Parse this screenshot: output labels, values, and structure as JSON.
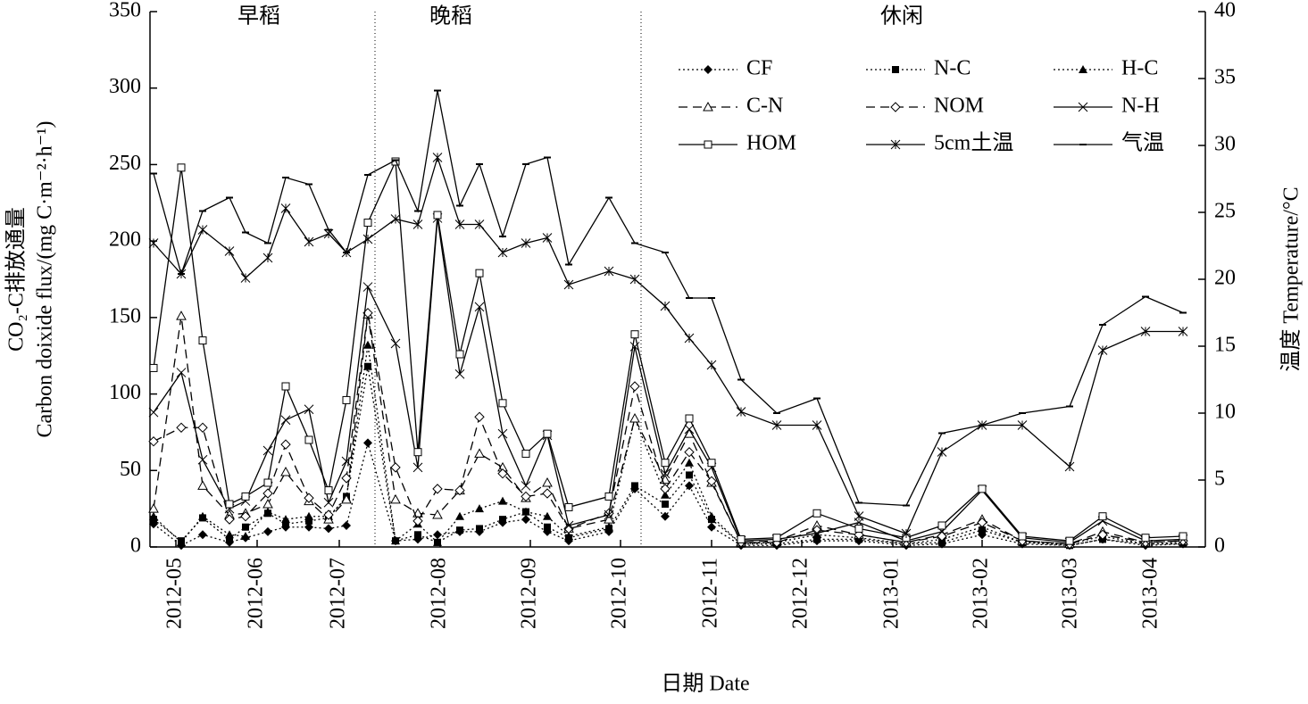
{
  "chart_data": {
    "type": "line",
    "annotations": [
      "早稻",
      "晚稻",
      "休闲"
    ],
    "xlabel": "日期 Date",
    "ylabel": [
      "CO₂-C排放通量",
      "Carbon doixide flux/(mg C·m⁻²·h⁻¹)"
    ],
    "y2label": "温度 Temperature/°C",
    "x": [
      4,
      35,
      59,
      89,
      107,
      132,
      152,
      178,
      200,
      220,
      244,
      275,
      300,
      322,
      347,
      369,
      395,
      421,
      445,
      469,
      514,
      543,
      577,
      604,
      629,
      662,
      702,
      747,
      794,
      847,
      887,
      932,
      977,
      1030,
      1067,
      1115,
      1157
    ],
    "xlim": [
      0,
      1182
    ],
    "xticks": [
      {
        "value": 29,
        "label": "2012-05"
      },
      {
        "value": 120,
        "label": "2012-06"
      },
      {
        "value": 212,
        "label": "2012-07"
      },
      {
        "value": 325,
        "label": "2012-08"
      },
      {
        "value": 426,
        "label": "2012-09"
      },
      {
        "value": 527,
        "label": "2012-10"
      },
      {
        "value": 629,
        "label": "2012-11"
      },
      {
        "value": 730,
        "label": "2012-12"
      },
      {
        "value": 832,
        "label": "2013-01"
      },
      {
        "value": 932,
        "label": "2013-02"
      },
      {
        "value": 1032,
        "label": "2013-03"
      },
      {
        "value": 1122,
        "label": "2013-04"
      }
    ],
    "ylim": [
      0,
      350
    ],
    "yticks": [
      0,
      50,
      100,
      150,
      200,
      250,
      300,
      350
    ],
    "y2lim": [
      0,
      40
    ],
    "y2ticks": [
      0,
      5,
      10,
      15,
      20,
      25,
      30,
      35,
      40
    ],
    "legend": "upper right",
    "series": [
      {
        "name": "CF",
        "color": "#000",
        "style": "dotted",
        "marker": "diamond",
        "values": [
          15,
          1,
          8,
          3,
          6,
          10,
          13,
          13,
          12,
          14,
          68,
          4,
          5,
          8,
          10,
          10,
          16,
          18,
          10,
          4,
          10,
          38,
          20,
          40,
          13,
          1,
          1,
          4,
          4,
          1,
          2,
          8,
          2,
          1,
          5,
          1,
          2
        ]
      },
      {
        "name": "N-C",
        "color": "#000",
        "style": "dotted",
        "marker": "square",
        "values": [
          18,
          4,
          19,
          5,
          13,
          22,
          15,
          17,
          19,
          33,
          118,
          4,
          8,
          3,
          11,
          12,
          18,
          23,
          13,
          6,
          12,
          40,
          28,
          47,
          18,
          2,
          2,
          5,
          5,
          2,
          3,
          11,
          3,
          1,
          5,
          2,
          2
        ]
      },
      {
        "name": "H-C",
        "color": "#000",
        "style": "dotted",
        "marker": "triangle",
        "values": [
          20,
          3,
          20,
          8,
          7,
          23,
          18,
          20,
          20,
          32,
          132,
          4,
          15,
          3,
          20,
          25,
          30,
          23,
          20,
          7,
          13,
          84,
          34,
          55,
          20,
          2,
          3,
          8,
          6,
          2,
          5,
          13,
          3,
          2,
          7,
          2,
          3
        ]
      },
      {
        "name": "C-N",
        "color": "#000",
        "style": "dashed",
        "marker": "triangle-open",
        "values": [
          25,
          151,
          40,
          21,
          22,
          28,
          49,
          30,
          18,
          31,
          152,
          31,
          22,
          21,
          37,
          61,
          52,
          32,
          42,
          12,
          18,
          84,
          44,
          74,
          42,
          3,
          4,
          14,
          8,
          3,
          8,
          18,
          4,
          2,
          10,
          3,
          4
        ]
      },
      {
        "name": "NOM",
        "color": "#000",
        "style": "dashed",
        "marker": "diamond-open",
        "values": [
          69,
          78,
          78,
          18,
          20,
          35,
          67,
          32,
          21,
          45,
          153,
          52,
          17,
          38,
          37,
          85,
          48,
          33,
          35,
          12,
          22,
          105,
          38,
          62,
          43,
          3,
          3,
          11,
          8,
          3,
          7,
          16,
          4,
          2,
          8,
          3,
          4
        ]
      },
      {
        "name": "N-H",
        "color": "#000",
        "style": "solid",
        "marker": "x",
        "values": [
          88,
          114,
          57,
          25,
          30,
          63,
          83,
          90,
          29,
          56,
          170,
          133,
          52,
          215,
          113,
          157,
          74,
          40,
          73,
          14,
          21,
          131,
          48,
          77,
          52,
          4,
          5,
          9,
          16,
          4,
          10,
          37,
          6,
          3,
          17,
          4,
          5
        ]
      },
      {
        "name": "HOM",
        "color": "#000",
        "style": "solid",
        "marker": "square-open",
        "values": [
          117,
          248,
          135,
          28,
          33,
          42,
          105,
          70,
          37,
          96,
          212,
          252,
          62,
          217,
          126,
          179,
          94,
          61,
          74,
          26,
          33,
          139,
          55,
          84,
          55,
          5,
          6,
          22,
          12,
          6,
          14,
          38,
          7,
          4,
          20,
          6,
          7
        ]
      },
      {
        "name": "5cm土温",
        "color": "#000",
        "style": "solid",
        "marker": "star",
        "axis": "y2",
        "values": [
          22.7,
          20.4,
          23.7,
          22.1,
          20.1,
          21.6,
          25.3,
          22.8,
          23.4,
          22,
          23,
          24.5,
          24.1,
          29.1,
          24.1,
          24.1,
          22,
          22.7,
          23.1,
          19.6,
          20.6,
          20,
          18,
          15.6,
          13.6,
          10.1,
          9.1,
          9.1,
          2.3,
          1,
          7.1,
          9.1,
          9.1,
          6,
          14.7,
          16.1,
          16.1
        ]
      },
      {
        "name": "气温",
        "color": "#000",
        "style": "solid",
        "marker": "dash",
        "axis": "y2",
        "values": [
          27.9,
          20.4,
          25.1,
          26.1,
          23.5,
          22.7,
          27.6,
          27.1,
          23.7,
          22,
          27.8,
          28.9,
          25.1,
          34.1,
          25.5,
          28.6,
          23.2,
          28.6,
          29.1,
          21.1,
          26.1,
          22.7,
          22,
          18.6,
          18.6,
          12.5,
          10,
          11.1,
          3.3,
          3.1,
          8.5,
          9.1,
          10,
          10.5,
          16.6,
          18.7,
          17.5
        ]
      }
    ]
  }
}
